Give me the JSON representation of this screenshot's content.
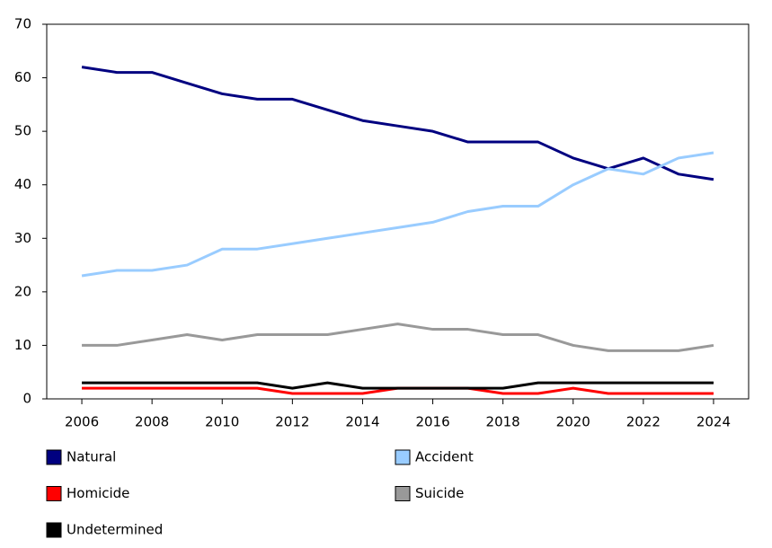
{
  "chart_data": {
    "type": "line",
    "x": [
      2006,
      2007,
      2008,
      2009,
      2010,
      2011,
      2012,
      2013,
      2014,
      2015,
      2016,
      2017,
      2018,
      2019,
      2020,
      2021,
      2022,
      2023,
      2024
    ],
    "series": [
      {
        "name": "Natural",
        "color": "#000080",
        "values": [
          62,
          61,
          61,
          59,
          57,
          56,
          56,
          54,
          52,
          51,
          50,
          48,
          48,
          48,
          45,
          43,
          45,
          42,
          41
        ]
      },
      {
        "name": "Accident",
        "color": "#99ccff",
        "values": [
          23,
          24,
          24,
          25,
          28,
          28,
          29,
          30,
          31,
          32,
          33,
          35,
          36,
          36,
          40,
          43,
          42,
          45,
          46
        ]
      },
      {
        "name": "Homicide",
        "color": "#ff0000",
        "values": [
          2,
          2,
          2,
          2,
          2,
          2,
          1,
          1,
          1,
          2,
          2,
          2,
          1,
          1,
          2,
          1,
          1,
          1,
          1
        ]
      },
      {
        "name": "Suicide",
        "color": "#999999",
        "values": [
          10,
          10,
          11,
          12,
          11,
          12,
          12,
          12,
          13,
          14,
          13,
          13,
          12,
          12,
          10,
          9,
          9,
          9,
          10
        ]
      },
      {
        "name": "Undetermined",
        "color": "#000000",
        "values": [
          3,
          3,
          3,
          3,
          3,
          3,
          2,
          3,
          2,
          2,
          2,
          2,
          2,
          3,
          3,
          3,
          3,
          3,
          3
        ]
      }
    ],
    "xlim": [
      2005,
      2025
    ],
    "xticks": [
      2006,
      2008,
      2010,
      2012,
      2014,
      2016,
      2018,
      2020,
      2022,
      2024
    ],
    "ylim": [
      0,
      70
    ],
    "yticks": [
      0,
      10,
      20,
      30,
      40,
      50,
      60,
      70
    ]
  }
}
